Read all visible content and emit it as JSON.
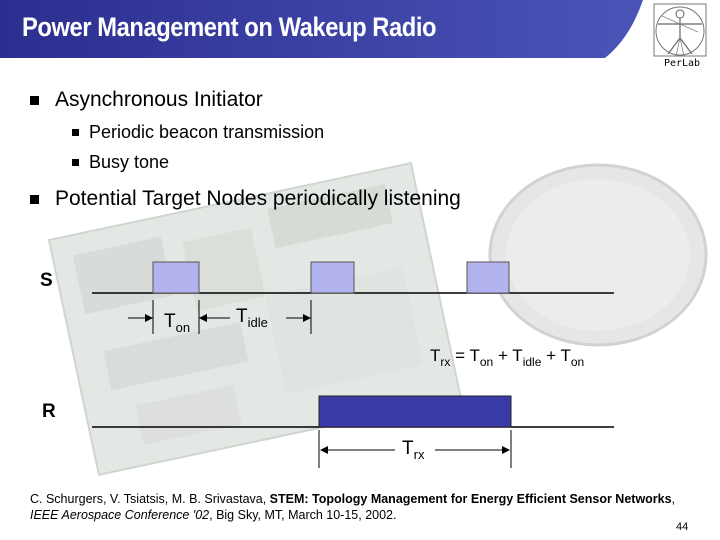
{
  "slide": {
    "title": "Power Management on Wakeup Radio",
    "logo_text": "PerLab",
    "bullets": [
      {
        "text": "Asynchronous Initiator",
        "sub": [
          "Periodic beacon transmission",
          "Busy tone"
        ]
      },
      {
        "text": "Potential Target Nodes periodically listening"
      }
    ],
    "page_number": "44"
  },
  "diagram": {
    "s_label": "S",
    "r_label": "R",
    "t_on": {
      "main": "T",
      "sub": "on"
    },
    "t_idle": {
      "main": "T",
      "sub": "idle"
    },
    "t_rx": {
      "main": "T",
      "sub": "rx"
    },
    "formula": {
      "lhs_main": "T",
      "lhs_sub": "rx",
      "eq": " = ",
      "a_main": "T",
      "a_sub": "on",
      "plus1": " + ",
      "b_main": "T",
      "b_sub": "idle",
      "plus2": " + ",
      "c_main": "T",
      "c_sub": "on"
    },
    "colors": {
      "pulse_light": "#b3b3f0",
      "pulse_dark": "#3a3aa8"
    }
  },
  "reference": {
    "authors": "C. Schurgers, V. Tsiatsis, M. B. Srivastava, ",
    "title_bold": "STEM: Topology Management for Energy Efficient Sensor Networks",
    "comma": ", ",
    "venue_italic": "IEEE Aerospace Conference '02",
    "rest": ", Big Sky, MT, March 10-15, 2002."
  }
}
